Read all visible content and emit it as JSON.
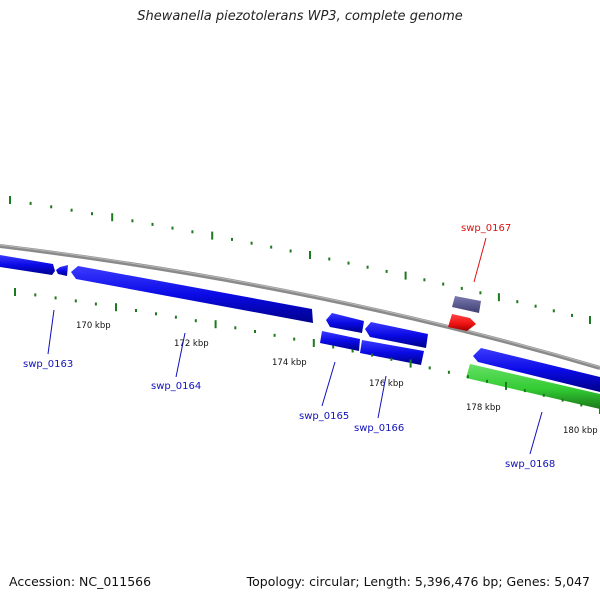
{
  "header": {
    "title": "Shewanella piezotolerans WP3, complete genome"
  },
  "footer": {
    "accession": "Accession: NC_011566",
    "summary": "Topology: circular; Length: 5,396,476 bp; Genes: 5,047"
  },
  "scale": {
    "ticks": [
      "170 kbp",
      "172 kbp",
      "174 kbp",
      "176 kbp",
      "178 kbp",
      "180 kbp"
    ]
  },
  "genes": [
    {
      "id": "swp_0163",
      "label": "swp_0163",
      "strand": "reverse",
      "type": "CDS"
    },
    {
      "id": "swp_0164",
      "label": "swp_0164",
      "strand": "reverse",
      "type": "CDS"
    },
    {
      "id": "swp_0165",
      "label": "swp_0165",
      "strand": "reverse",
      "type": "CDS"
    },
    {
      "id": "swp_0166",
      "label": "swp_0166",
      "strand": "reverse",
      "type": "CDS"
    },
    {
      "id": "swp_0167",
      "label": "swp_0167",
      "strand": "forward",
      "type": "highlighted"
    },
    {
      "id": "swp_0168",
      "label": "swp_0168",
      "strand": "reverse",
      "type": "rRNA"
    }
  ],
  "colors": {
    "cds": "#0a0ae6",
    "cds_dark": "#00008a",
    "highlight": "#ee1111",
    "highlight_dark": "#990000",
    "rna": "#33cc33",
    "rna_dark": "#1a7a1a",
    "misc": "#55558e",
    "backbone": "#8a8a8a",
    "tick": "#1e7a1e",
    "label_blue": "#1111bb",
    "label_red": "#dd1111"
  }
}
